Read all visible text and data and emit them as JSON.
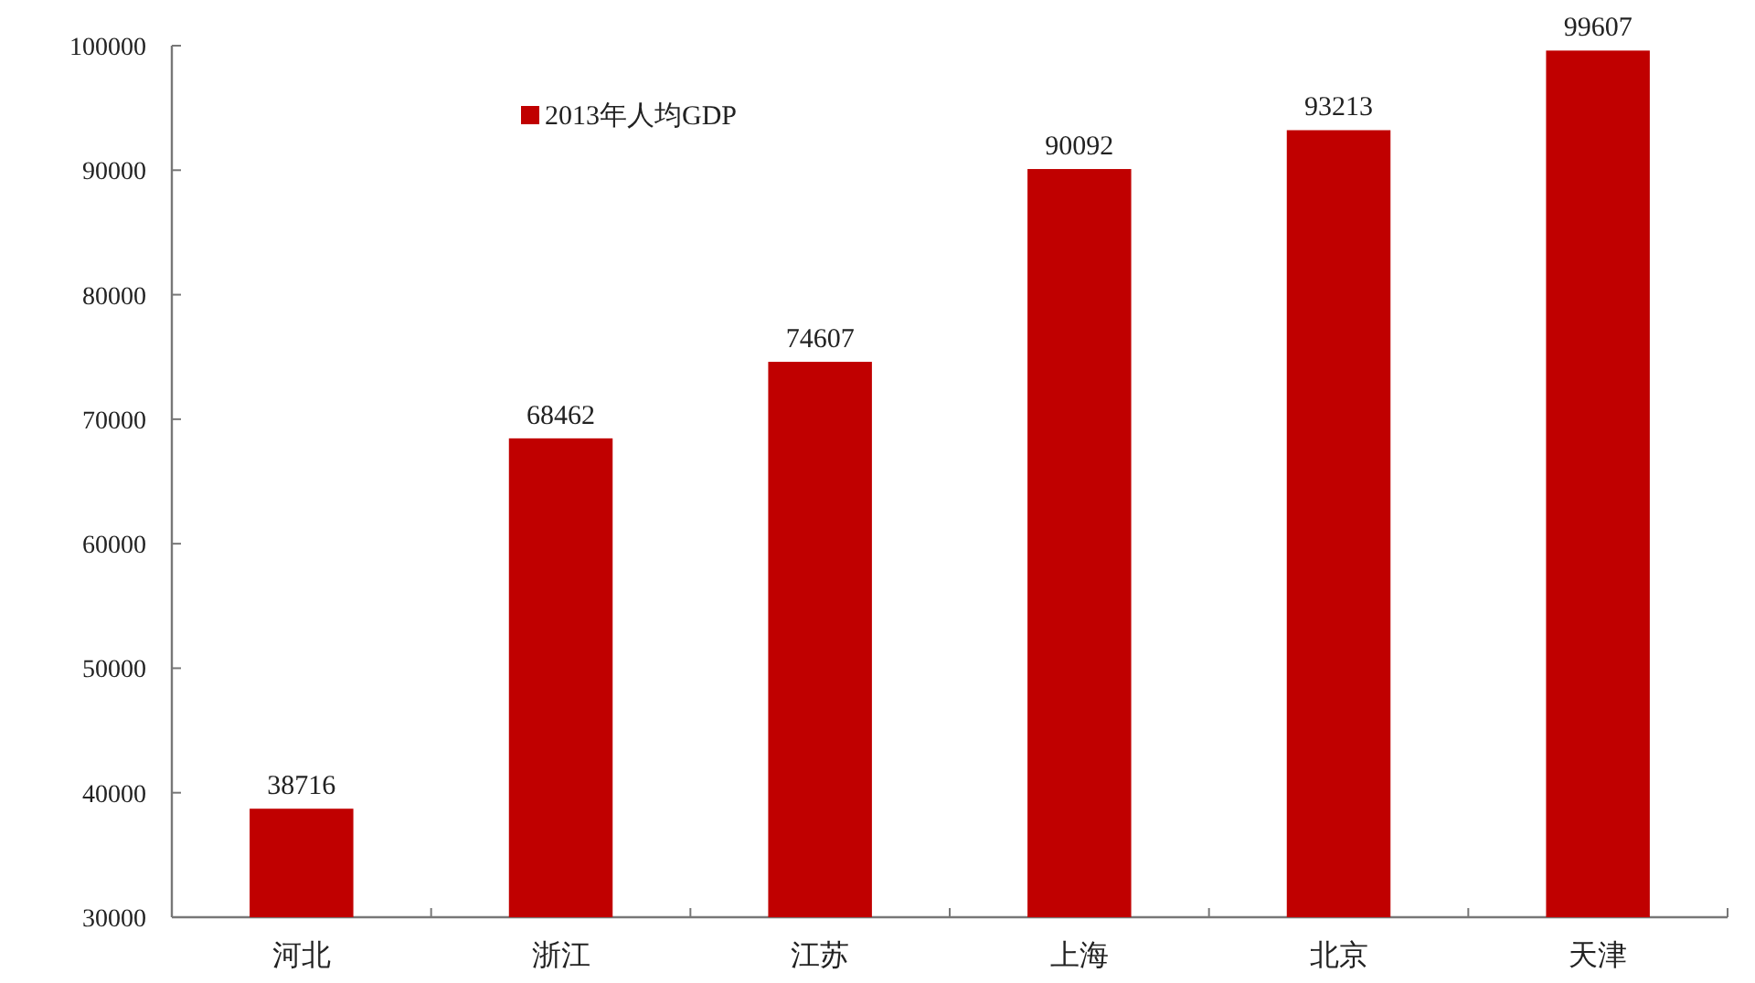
{
  "chart_data": {
    "type": "bar",
    "categories": [
      "河北",
      "浙江",
      "江苏",
      "上海",
      "北京",
      "天津"
    ],
    "series": [
      {
        "name": "2013年人均GDP",
        "color": "#c00000",
        "values": [
          38716,
          68462,
          74607,
          90092,
          93213,
          99607
        ]
      }
    ],
    "ylim": [
      30000,
      100000
    ],
    "yticks": [
      30000,
      40000,
      50000,
      60000,
      70000,
      80000,
      90000,
      100000
    ],
    "data_labels": true,
    "grid": false,
    "legend": "top left"
  }
}
